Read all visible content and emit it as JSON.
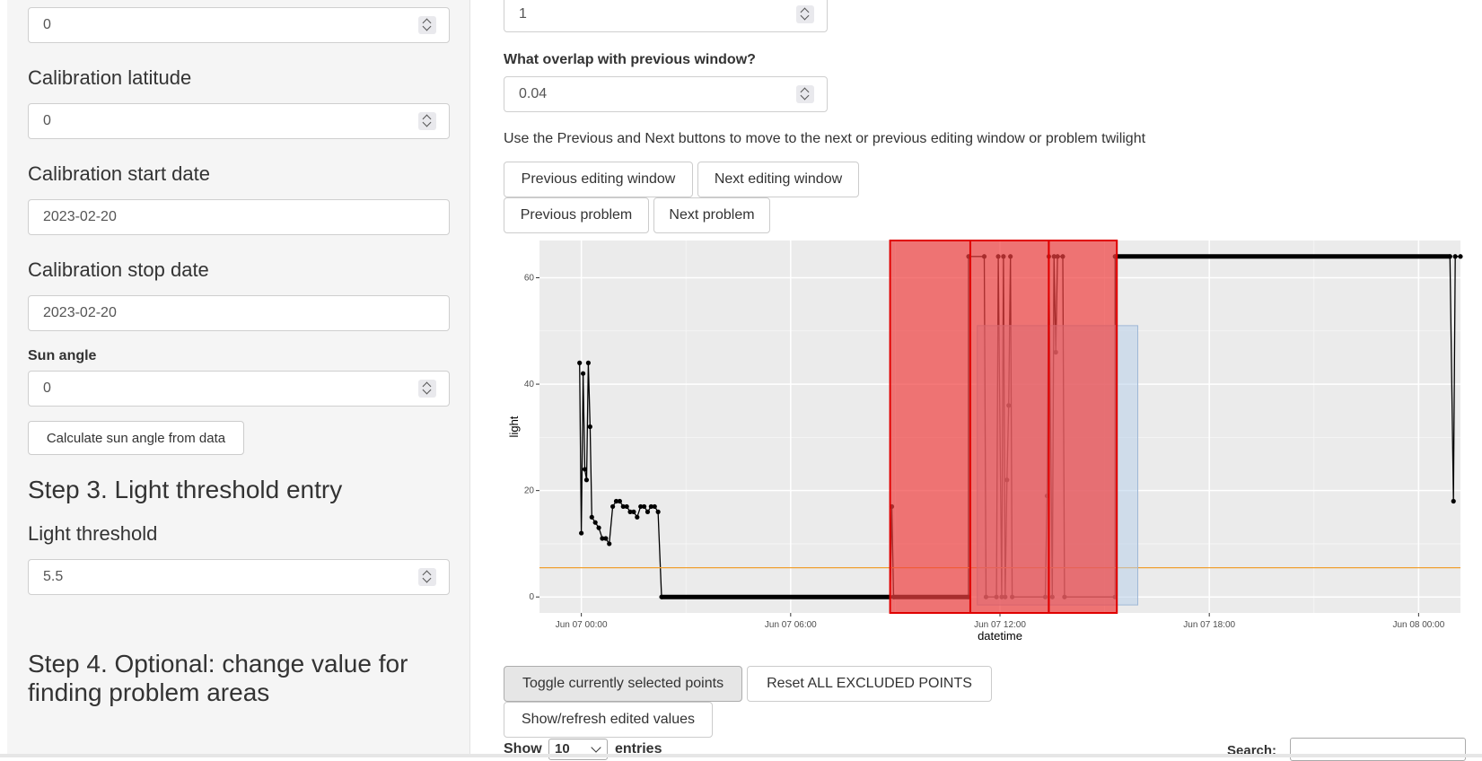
{
  "sidebar": {
    "top_input_value": "0",
    "cal_lat_label": "Calibration latitude",
    "cal_lat_value": "0",
    "cal_start_label": "Calibration start date",
    "cal_start_value": "2023-02-20",
    "cal_stop_label": "Calibration stop date",
    "cal_stop_value": "2023-02-20",
    "sun_angle_label": "Sun angle",
    "sun_angle_value": "0",
    "calc_sun_button": "Calculate sun angle from data",
    "step3_heading": "Step 3. Light threshold entry",
    "threshold_label": "Light threshold",
    "threshold_value": "5.5",
    "step4_heading": "Step 4. Optional: change value for finding problem areas"
  },
  "main": {
    "window_input_value": "1",
    "overlap_label": "What overlap with previous window?",
    "overlap_value": "0.04",
    "nav_instructions": "Use the Previous and Next buttons to move to the next or previous editing window or problem twilight",
    "prev_window_button": "Previous editing window",
    "next_window_button": "Next editing window",
    "prev_problem_button": "Previous problem",
    "next_problem_button": "Next problem",
    "toggle_button": "Toggle currently selected points",
    "reset_button": "Reset ALL EXCLUDED POINTS",
    "refresh_button": "Show/refresh edited values",
    "show_label": "Show",
    "entries_value": "10",
    "entries_label": "entries",
    "search_label": "Search:"
  },
  "chart_data": {
    "type": "line",
    "xlabel": "datetime",
    "ylabel": "light",
    "x_unit": "hours since Jun 07 00:00",
    "xlim": [
      -1.2,
      25.2
    ],
    "ylim": [
      -3,
      67
    ],
    "x_ticks": [
      {
        "value": 0,
        "label": "Jun 07 00:00"
      },
      {
        "value": 6,
        "label": "Jun 07 06:00"
      },
      {
        "value": 12,
        "label": "Jun 07 12:00"
      },
      {
        "value": 18,
        "label": "Jun 07 18:00"
      },
      {
        "value": 24,
        "label": "Jun 08 00:00"
      }
    ],
    "y_ticks": [
      0,
      20,
      40,
      60
    ],
    "threshold": 5.5,
    "threshold_color": "#f0a030",
    "line_color": "#000000",
    "problem_regions": [
      {
        "x0": 8.85,
        "x1": 11.15
      },
      {
        "x0": 11.15,
        "x1": 13.4
      },
      {
        "x0": 13.4,
        "x1": 15.35
      }
    ],
    "problem_color": "#f04040",
    "selection_box": {
      "x0": 11.35,
      "x1": 15.95,
      "y0": -1.5,
      "y1": 51
    },
    "selection_color": "#b8d0ea",
    "series": [
      {
        "values": [
          [
            -0.05,
            44
          ],
          [
            0.0,
            12
          ],
          [
            0.05,
            42
          ],
          [
            0.1,
            24
          ],
          [
            0.15,
            22
          ],
          [
            0.2,
            44
          ],
          [
            0.25,
            32
          ],
          [
            0.3,
            15
          ],
          [
            0.4,
            14
          ],
          [
            0.5,
            13
          ],
          [
            0.6,
            11
          ],
          [
            0.7,
            11
          ],
          [
            0.8,
            10
          ],
          [
            0.9,
            17
          ],
          [
            1.0,
            18
          ],
          [
            1.1,
            18
          ],
          [
            1.2,
            17
          ],
          [
            1.3,
            17
          ],
          [
            1.4,
            16
          ],
          [
            1.5,
            16
          ],
          [
            1.6,
            15
          ],
          [
            1.7,
            17
          ],
          [
            1.8,
            17
          ],
          [
            1.9,
            16
          ],
          [
            2.0,
            17
          ],
          [
            2.1,
            17
          ],
          [
            2.2,
            16
          ],
          [
            2.3,
            0
          ],
          [
            8.85,
            0
          ],
          [
            8.9,
            17
          ],
          [
            8.95,
            0
          ],
          [
            11.1,
            0
          ],
          [
            11.1,
            64
          ],
          [
            11.55,
            64
          ],
          [
            11.6,
            0
          ],
          [
            11.9,
            0
          ],
          [
            11.95,
            64
          ],
          [
            12.05,
            0
          ],
          [
            12.1,
            64
          ],
          [
            12.15,
            0
          ],
          [
            12.2,
            22
          ],
          [
            12.25,
            36
          ],
          [
            12.3,
            64
          ],
          [
            12.35,
            0
          ],
          [
            13.3,
            0
          ],
          [
            13.35,
            19
          ],
          [
            13.4,
            64
          ],
          [
            13.5,
            0
          ],
          [
            13.55,
            64
          ],
          [
            13.6,
            46
          ],
          [
            13.65,
            64
          ],
          [
            13.8,
            64
          ],
          [
            13.85,
            0
          ],
          [
            15.3,
            0
          ],
          [
            15.3,
            64
          ],
          [
            24.9,
            64
          ],
          [
            25.0,
            18
          ],
          [
            25.05,
            64
          ],
          [
            25.2,
            64
          ]
        ]
      }
    ]
  }
}
